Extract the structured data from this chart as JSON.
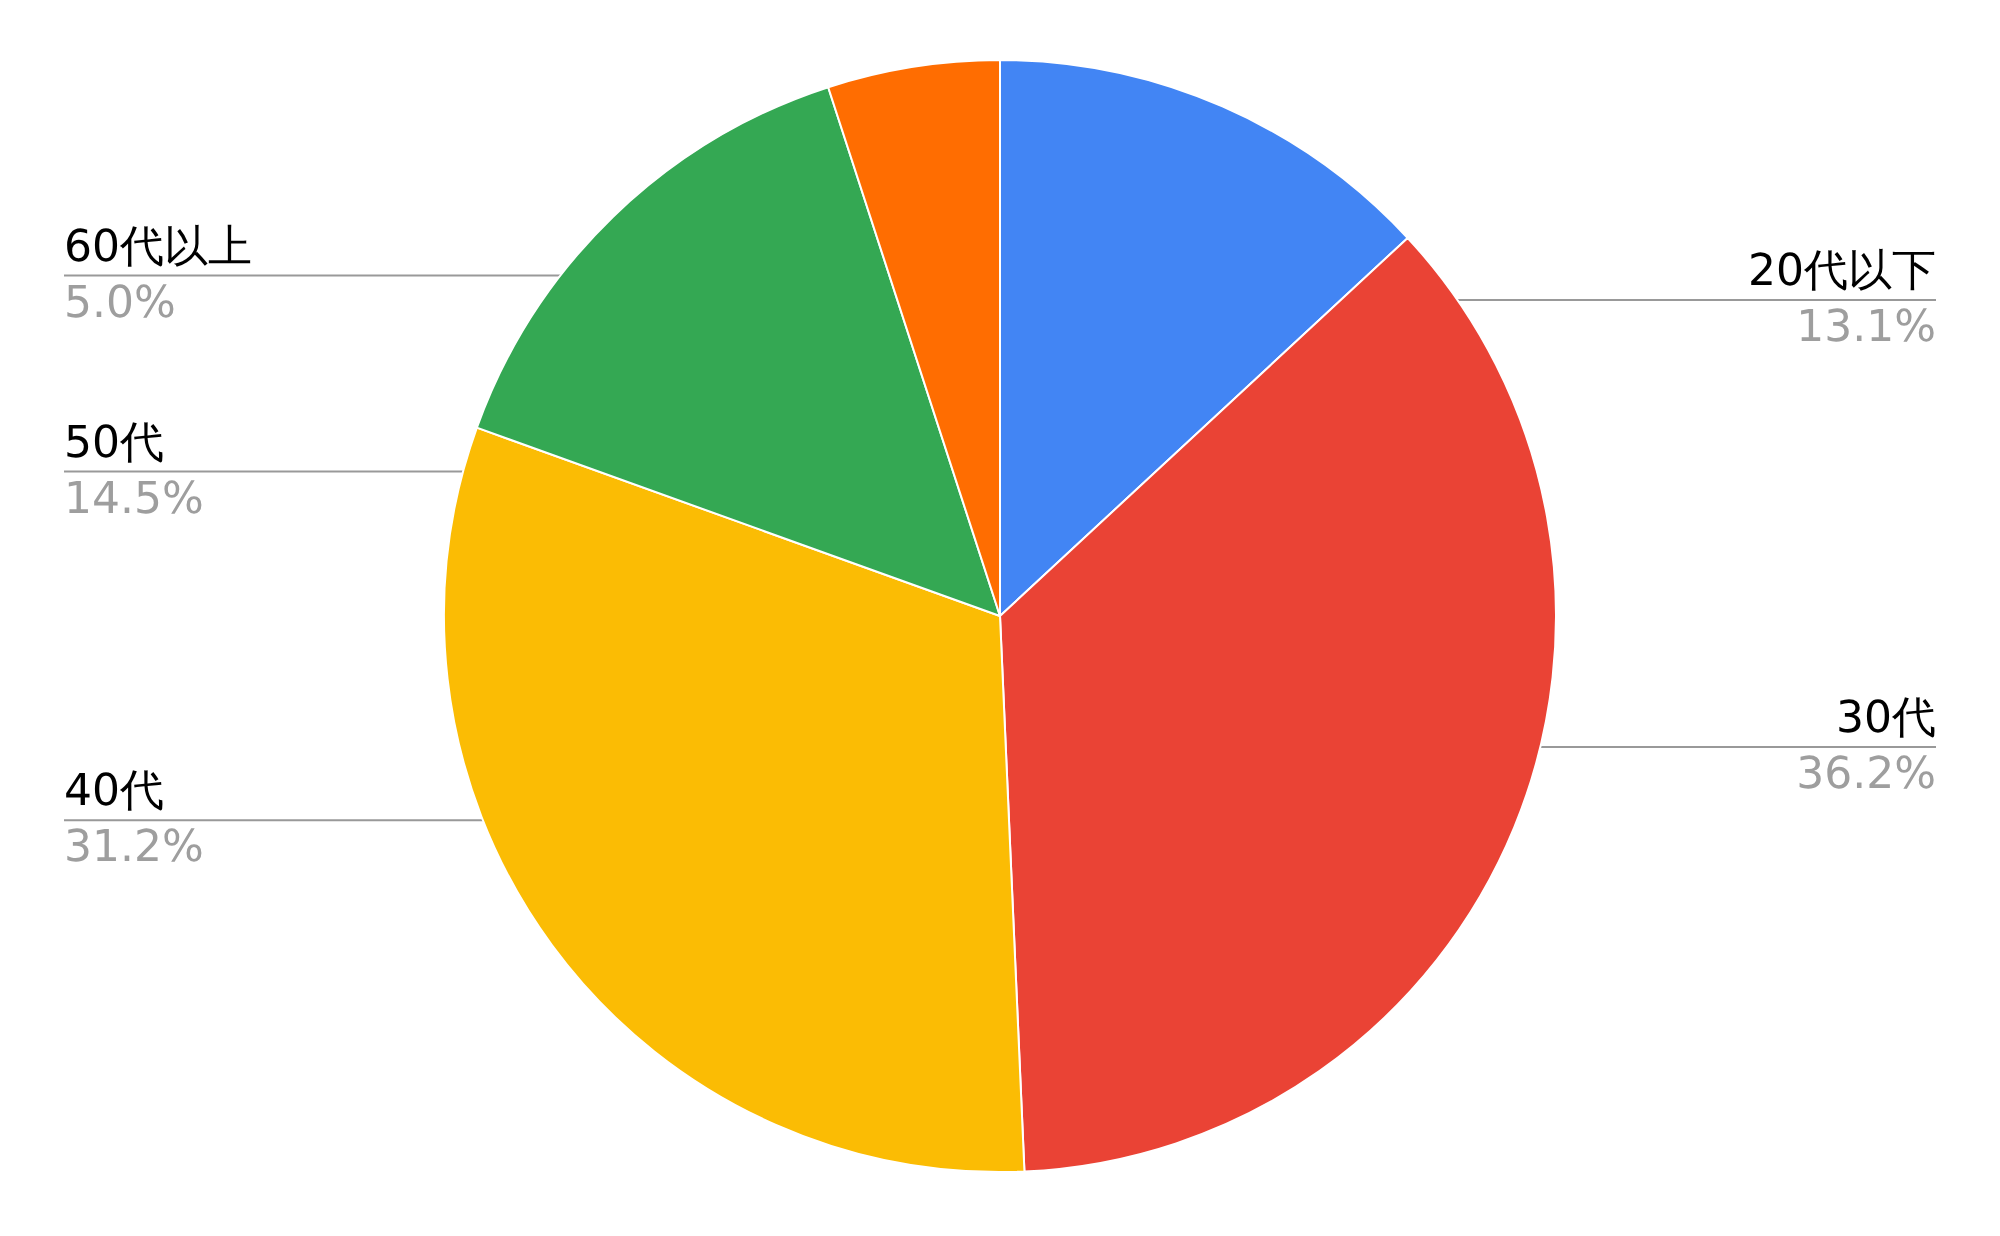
{
  "chart_data": {
    "type": "pie",
    "categories": [
      "20代以下",
      "30代",
      "40代",
      "50代",
      "60代以上"
    ],
    "values": [
      13.1,
      36.2,
      31.2,
      14.5,
      5.0
    ],
    "value_labels": [
      "13.1%",
      "36.2%",
      "31.2%",
      "14.5%",
      "5.0%"
    ],
    "colors": [
      "#4285f4",
      "#ea4335",
      "#fbbc04",
      "#34a853",
      "#ff6d01"
    ],
    "legend": false
  }
}
